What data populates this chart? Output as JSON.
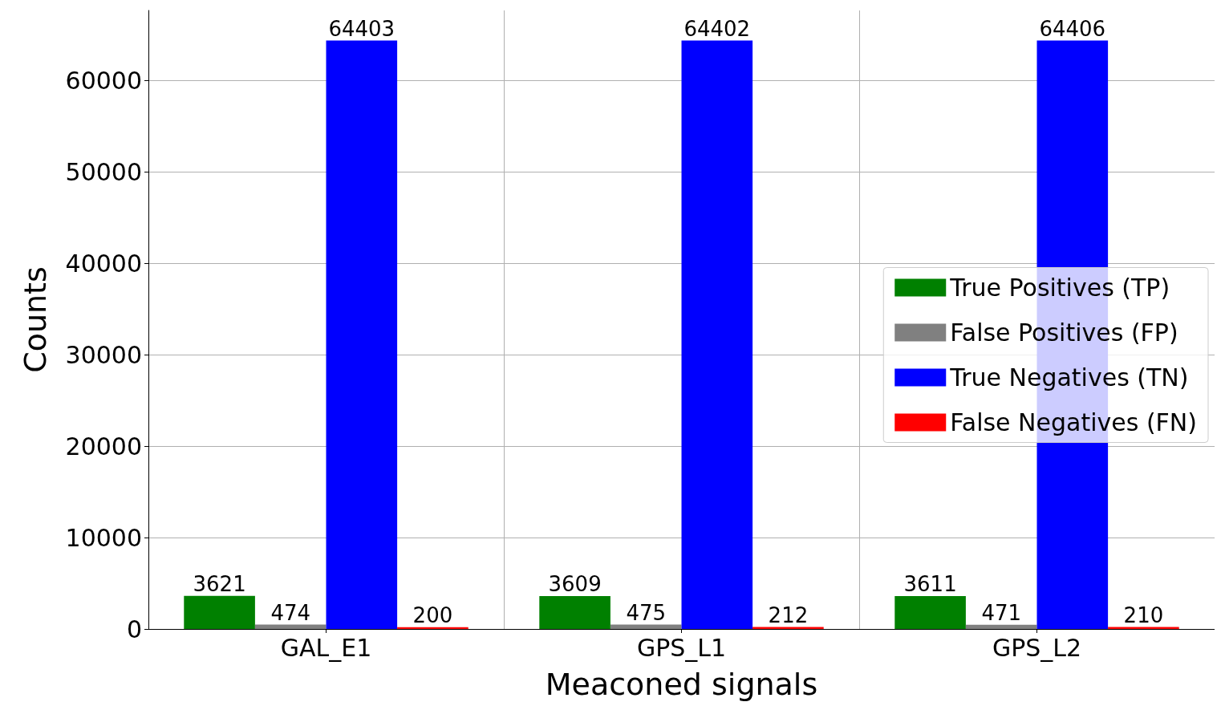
{
  "chart_data": {
    "type": "bar",
    "xlabel": "Meaconed signals",
    "ylabel": "Counts",
    "categories": [
      "GAL_E1",
      "GPS_L1",
      "GPS_L2"
    ],
    "series": [
      {
        "name": "True Positives (TP)",
        "color": "#008000",
        "values": [
          3621,
          3609,
          3611
        ]
      },
      {
        "name": "False Positives (FP)",
        "color": "#808080",
        "values": [
          474,
          475,
          471
        ]
      },
      {
        "name": "True Negatives (TN)",
        "color": "#0000ff",
        "values": [
          64403,
          64402,
          64406
        ]
      },
      {
        "name": "False Negatives (FN)",
        "color": "#ff0000",
        "values": [
          200,
          212,
          210
        ]
      }
    ],
    "ylim": [
      0,
      67700
    ],
    "yticks": [
      0,
      10000,
      20000,
      30000,
      40000,
      50000,
      60000
    ],
    "grid": true,
    "legend": "right",
    "data_labels": true
  }
}
